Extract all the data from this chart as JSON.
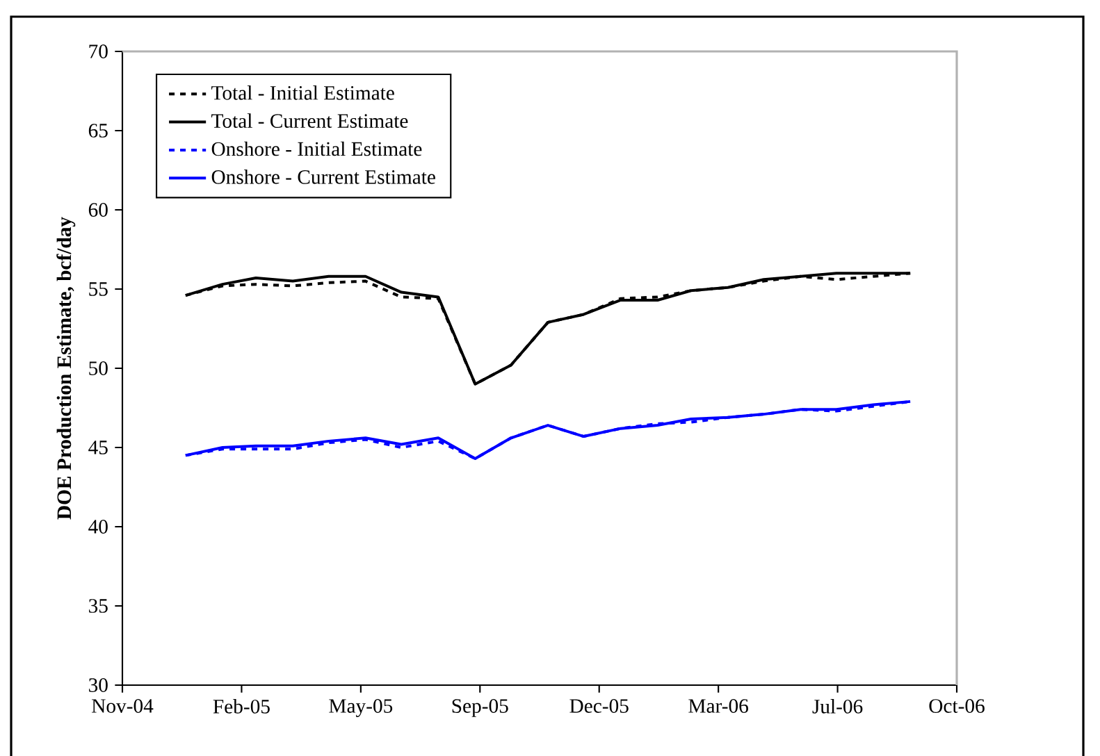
{
  "chart_data": {
    "type": "line",
    "ylabel": "DOE Production Estimate, bcf/day",
    "x": [
      "2005-01",
      "2005-02",
      "2005-03",
      "2005-04",
      "2005-05",
      "2005-06",
      "2005-07",
      "2005-08",
      "2005-09",
      "2005-10",
      "2005-11",
      "2005-12",
      "2006-01",
      "2006-02",
      "2006-03",
      "2006-04",
      "2006-05",
      "2006-06",
      "2006-07",
      "2006-08",
      "2006-09"
    ],
    "series": [
      {
        "name": "Total - Initial Estimate",
        "color": "#000000",
        "line_style": "dashed",
        "values": [
          54.6,
          55.2,
          55.3,
          55.2,
          55.4,
          55.5,
          54.5,
          54.4,
          49.0,
          50.2,
          52.9,
          53.4,
          54.4,
          54.5,
          54.9,
          55.1,
          55.5,
          55.8,
          55.6,
          55.8,
          56.0
        ]
      },
      {
        "name": "Total - Current Estimate",
        "color": "#000000",
        "line_style": "solid",
        "values": [
          54.6,
          55.3,
          55.7,
          55.5,
          55.8,
          55.8,
          54.8,
          54.5,
          49.0,
          50.2,
          52.9,
          53.4,
          54.3,
          54.3,
          54.9,
          55.1,
          55.6,
          55.8,
          56.0,
          56.0,
          56.0
        ]
      },
      {
        "name": "Onshore - Initial Estimate",
        "color": "#0000ff",
        "line_style": "dashed",
        "values": [
          44.5,
          44.9,
          44.9,
          44.9,
          45.3,
          45.5,
          45.0,
          45.4,
          44.3,
          45.6,
          46.4,
          45.7,
          46.2,
          46.5,
          46.6,
          46.9,
          47.1,
          47.4,
          47.3,
          47.6,
          47.9
        ]
      },
      {
        "name": "Onshore - Current Estimate",
        "color": "#0000ff",
        "line_style": "solid",
        "values": [
          44.5,
          45.0,
          45.1,
          45.1,
          45.4,
          45.6,
          45.2,
          45.6,
          44.3,
          45.6,
          46.4,
          45.7,
          46.2,
          46.4,
          46.8,
          46.9,
          47.1,
          47.4,
          47.4,
          47.7,
          47.9
        ]
      }
    ],
    "xlim": [
      "2004-11-09",
      "2006-10-10"
    ],
    "xticks": [
      {
        "value": "2004-11-09",
        "label": "Nov-04"
      },
      {
        "value": "2005-02-17",
        "label": "Feb-05"
      },
      {
        "value": "2005-05-28",
        "label": "May-05"
      },
      {
        "value": "2005-09-05",
        "label": "Sep-05"
      },
      {
        "value": "2005-12-14",
        "label": "Dec-05"
      },
      {
        "value": "2006-03-24",
        "label": "Mar-06"
      },
      {
        "value": "2006-07-02",
        "label": "Jul-06"
      },
      {
        "value": "2006-10-10",
        "label": "Oct-06"
      }
    ],
    "ylim": [
      30,
      70
    ],
    "yticks": [
      30,
      35,
      40,
      45,
      50,
      55,
      60,
      65,
      70
    ],
    "legend": "top left",
    "marker": "none"
  }
}
